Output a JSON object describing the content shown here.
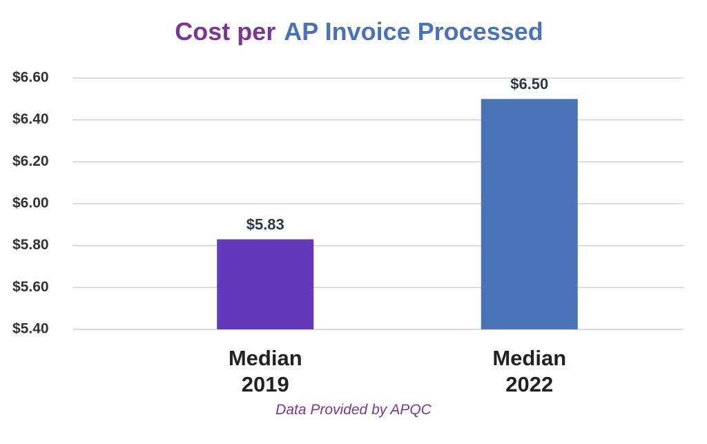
{
  "chart_data": {
    "type": "bar",
    "title": [
      "Cost per",
      "AP Invoice Processed"
    ],
    "title_colors": [
      "#7b3596",
      "#4a72b8"
    ],
    "categories": [
      "Median\n2019",
      "Median\n2022"
    ],
    "values": [
      5.83,
      6.5
    ],
    "value_labels": [
      "$5.83",
      "$6.50"
    ],
    "colors": [
      "#6339b9",
      "#4b74b8"
    ],
    "ylim": [
      5.4,
      6.6
    ],
    "yticks": [
      {
        "value": 5.4,
        "label": "$5.40"
      },
      {
        "value": 5.6,
        "label": "$5.60"
      },
      {
        "value": 5.8,
        "label": "$5.80"
      },
      {
        "value": 6.0,
        "label": "$6.00"
      },
      {
        "value": 6.2,
        "label": "$6.20"
      },
      {
        "value": 6.4,
        "label": "$6.40"
      },
      {
        "value": 6.6,
        "label": "$6.60"
      }
    ],
    "grid": true,
    "source": "Data Provided by APQC"
  }
}
